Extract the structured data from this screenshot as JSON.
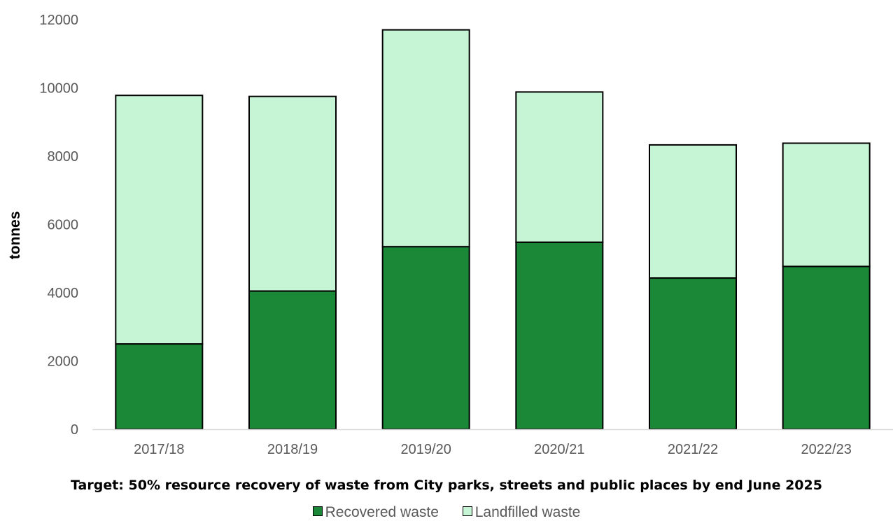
{
  "chart_data": {
    "type": "bar",
    "stacked": true,
    "categories": [
      "2017/18",
      "2018/19",
      "2019/20",
      "2020/21",
      "2021/22",
      "2022/23"
    ],
    "series": [
      {
        "name": "Recovered waste",
        "color": "#1b8837",
        "values": [
          2500,
          4050,
          5350,
          5480,
          4430,
          4770
        ]
      },
      {
        "name": "Landfilled waste",
        "color": "#c5f5d5",
        "values": [
          7280,
          5700,
          6350,
          4400,
          3900,
          3610
        ]
      }
    ],
    "ylabel": "tonnes",
    "ylim": [
      0,
      12000
    ],
    "yticks": [
      "0",
      "2000",
      "4000",
      "6000",
      "8000",
      "10000",
      "12000"
    ],
    "grid": false,
    "legend_position": "bottom",
    "footnote": "Target: 50% resource recovery of waste from City parks, streets and public places by end June 2025"
  }
}
